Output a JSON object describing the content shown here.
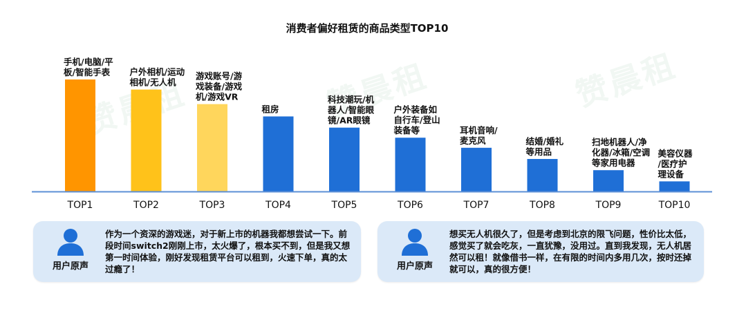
{
  "chart_data": {
    "type": "bar",
    "title": "消费者偏好租赁的商品类型TOP10",
    "categories": [
      "TOP1",
      "TOP2",
      "TOP3",
      "TOP4",
      "TOP5",
      "TOP6",
      "TOP7",
      "TOP8",
      "TOP9",
      "TOP10"
    ],
    "values": [
      100,
      91,
      78,
      67,
      57,
      48,
      39,
      29,
      19,
      9
    ],
    "labels": [
      [
        "手机/电脑/平",
        "板/智能手表"
      ],
      [
        "户外相机/运动",
        "相机/无人机"
      ],
      [
        "游戏账号/游",
        "戏装备/游戏",
        "机/游戏VR"
      ],
      [
        "租房"
      ],
      [
        "科技潮玩/机",
        "器人/智能眼",
        "镜/AR眼镜"
      ],
      [
        "户外装备如",
        "自行车/登山",
        "装备等"
      ],
      [
        "耳机音响/",
        "麦克风"
      ],
      [
        "结婚/婚礼",
        "等用品"
      ],
      [
        "扫地机器人/净",
        "化器/冰箱/空调",
        "等家用电器"
      ],
      [
        "美容仪器",
        "/医疗护",
        "理设备"
      ]
    ],
    "colors": [
      "#ff9500",
      "#ffc21a",
      "#ffd65c",
      "#1f6fd6",
      "#1f6fd6",
      "#1f6fd6",
      "#1f6fd6",
      "#1f6fd6",
      "#1f6fd6",
      "#1f6fd6"
    ],
    "baseline_color": "#5b8fd6",
    "ylim": [
      0,
      100
    ],
    "grid": false,
    "legend": "none"
  },
  "watermark": "赞晨租",
  "quotes": [
    {
      "label": "用户原声",
      "text": "作为一个资深的游戏迷，对于新上市的机器我都想尝试一下。前段时间switch2刚刚上市，太火爆了，根本买不到，但是我又想第一时间体验，刚好发现租赁平台可以租到，火速下单，真的太过瘾了！"
    },
    {
      "label": "用户原声",
      "text": "想买无人机很久了，但是考虑到北京的限飞问题，性价比太低，感觉买了就会吃灰，一直犹豫，没用过。直到我发现，无人机居然可以租！就像借书一样，在有限的时间内多用几次，按时还掉就可以，真的很方便！"
    }
  ]
}
